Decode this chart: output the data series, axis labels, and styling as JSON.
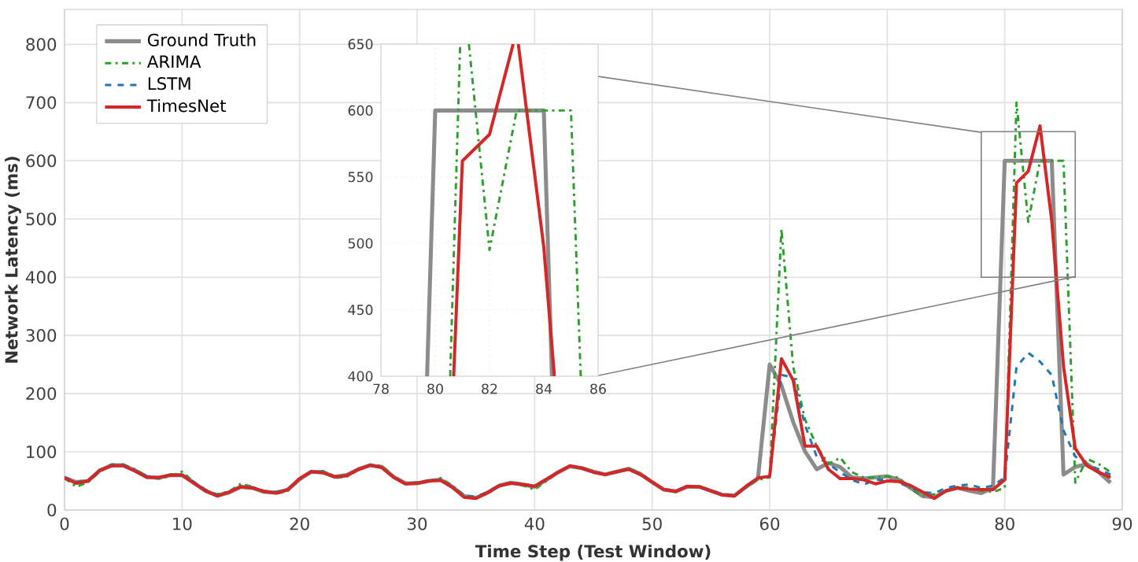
{
  "chart_data": [
    {
      "type": "line",
      "xlabel": "Time Step (Test Window)",
      "ylabel": "Network Latency (ms)",
      "x": [
        0,
        1,
        2,
        3,
        4,
        5,
        6,
        7,
        8,
        9,
        10,
        11,
        12,
        13,
        14,
        15,
        16,
        17,
        18,
        19,
        20,
        21,
        22,
        23,
        24,
        25,
        26,
        27,
        28,
        29,
        30,
        31,
        32,
        33,
        34,
        35,
        36,
        37,
        38,
        39,
        40,
        41,
        42,
        43,
        44,
        45,
        46,
        47,
        48,
        49,
        50,
        51,
        52,
        53,
        54,
        55,
        56,
        57,
        58,
        59,
        60,
        61,
        62,
        63,
        64,
        65,
        66,
        67,
        68,
        69,
        70,
        71,
        72,
        73,
        74,
        75,
        76,
        77,
        78,
        79,
        80,
        81,
        82,
        83,
        84,
        85,
        86,
        87,
        88,
        89
      ],
      "xlim": [
        0,
        90
      ],
      "ylim": [
        0,
        860
      ],
      "xticks": [
        0,
        10,
        20,
        30,
        40,
        50,
        60,
        70,
        80,
        90
      ],
      "yticks": [
        0,
        100,
        200,
        300,
        400,
        500,
        600,
        700,
        800
      ],
      "grid": true,
      "legend": "top left",
      "series": [
        {
          "name": "Ground Truth",
          "color": "#8c8c8c",
          "line_style": "solid",
          "values": [
            55,
            48,
            50,
            68,
            77,
            77,
            68,
            57,
            55,
            60,
            60,
            47,
            33,
            25,
            30,
            40,
            38,
            31,
            30,
            35,
            53,
            66,
            65,
            57,
            60,
            70,
            77,
            74,
            57,
            46,
            46,
            50,
            52,
            40,
            24,
            21,
            30,
            42,
            47,
            44,
            40,
            52,
            65,
            75,
            72,
            66,
            61,
            66,
            71,
            62,
            48,
            35,
            32,
            40,
            40,
            33,
            26,
            25,
            40,
            54,
            250,
            214,
            151,
            101,
            70,
            81,
            74,
            56,
            54,
            56,
            58,
            52,
            38,
            24,
            22,
            33,
            38,
            33,
            29,
            38,
            600,
            600,
            600,
            600,
            600,
            61,
            74,
            79,
            65,
            47
          ]
        },
        {
          "name": "ARIMA",
          "color": "#2ca02c",
          "line_style": "dashdot",
          "values": [
            55,
            40,
            48,
            66,
            77,
            78,
            70,
            58,
            54,
            58,
            66,
            48,
            33,
            27,
            32,
            45,
            40,
            31,
            28,
            33,
            52,
            66,
            67,
            55,
            57,
            69,
            77,
            76,
            58,
            45,
            48,
            50,
            55,
            42,
            25,
            21,
            28,
            42,
            48,
            42,
            35,
            50,
            64,
            76,
            73,
            67,
            60,
            65,
            72,
            63,
            49,
            35,
            31,
            41,
            41,
            33,
            26,
            23,
            39,
            52,
            56,
            483,
            246,
            156,
            110,
            79,
            90,
            65,
            56,
            56,
            58,
            56,
            36,
            24,
            27,
            33,
            40,
            38,
            33,
            31,
            38,
            700,
            495,
            600,
            600,
            600,
            47,
            88,
            79,
            65
          ]
        },
        {
          "name": "LSTM",
          "color": "#1f77b4",
          "line_style": "dashed",
          "values": [
            57,
            48,
            51,
            69,
            78,
            78,
            69,
            58,
            55,
            61,
            61,
            48,
            35,
            26,
            31,
            40,
            39,
            33,
            31,
            36,
            54,
            67,
            66,
            58,
            60,
            70,
            78,
            74,
            57,
            46,
            47,
            51,
            52,
            40,
            25,
            23,
            31,
            43,
            47,
            45,
            41,
            52,
            66,
            76,
            72,
            66,
            61,
            67,
            71,
            62,
            48,
            36,
            33,
            41,
            40,
            34,
            27,
            26,
            40,
            55,
            58,
            232,
            228,
            146,
            92,
            79,
            65,
            52,
            44,
            52,
            52,
            47,
            38,
            31,
            29,
            38,
            42,
            44,
            38,
            42,
            56,
            246,
            270,
            255,
            232,
            137,
            92,
            79,
            70,
            61
          ]
        },
        {
          "name": "TimesNet",
          "color": "#d62728",
          "line_style": "solid",
          "values": [
            55,
            46,
            50,
            68,
            76,
            76,
            67,
            56,
            56,
            60,
            60,
            46,
            33,
            24,
            31,
            40,
            38,
            32,
            29,
            35,
            54,
            66,
            64,
            57,
            59,
            70,
            77,
            73,
            56,
            45,
            46,
            50,
            51,
            39,
            22,
            20,
            30,
            42,
            46,
            44,
            41,
            53,
            65,
            76,
            72,
            65,
            61,
            66,
            70,
            61,
            48,
            35,
            32,
            41,
            40,
            33,
            26,
            24,
            41,
            55,
            58,
            260,
            223,
            110,
            110,
            70,
            54,
            54,
            52,
            45,
            50,
            49,
            42,
            31,
            20,
            33,
            38,
            36,
            35,
            35,
            52,
            562,
            582,
            660,
            497,
            247,
            106,
            76,
            65,
            56
          ]
        }
      ]
    },
    {
      "type": "line",
      "xlim": [
        78,
        86
      ],
      "ylim": [
        400,
        650
      ],
      "xticks": [
        78,
        80,
        82,
        84,
        86
      ],
      "yticks": [
        400,
        450,
        500,
        550,
        600,
        650
      ],
      "grid": true,
      "series": [
        {
          "color": "#8c8c8c",
          "line_style": "solid",
          "x": [
            79.7,
            80,
            81,
            82,
            83,
            84,
            84.3
          ],
          "values": [
            400,
            600,
            600,
            600,
            600,
            600,
            400
          ]
        },
        {
          "color": "#2ca02c",
          "line_style": "dashdot",
          "x": [
            80.55,
            80.92,
            81.08,
            81.24,
            82,
            83,
            84,
            85,
            85.36
          ],
          "values": [
            400,
            650,
            null,
            650,
            495,
            600,
            600,
            600,
            400
          ]
        },
        {
          "color": "#d62728",
          "line_style": "solid",
          "x": [
            80.68,
            81,
            82,
            82.87,
            82.96,
            83.06,
            84,
            84.39
          ],
          "values": [
            400,
            562,
            582,
            650,
            null,
            650,
            497,
            400
          ]
        }
      ]
    }
  ]
}
